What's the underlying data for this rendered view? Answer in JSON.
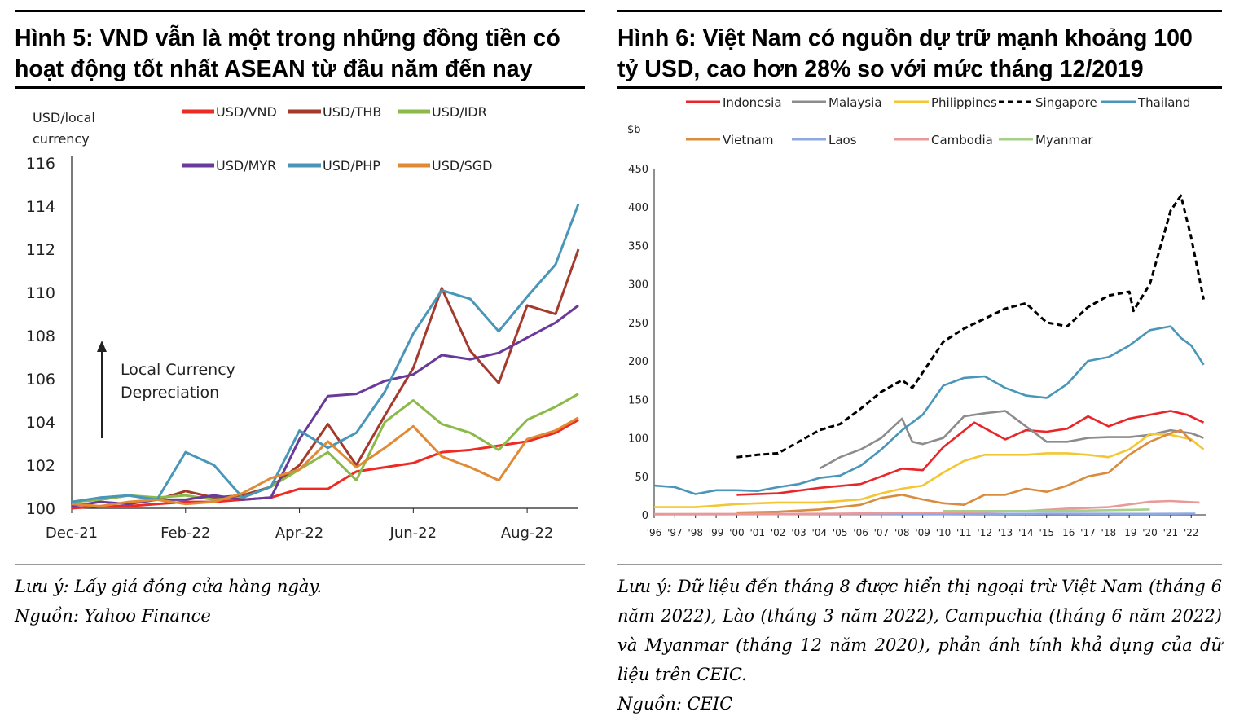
{
  "left": {
    "title_line1": "Hình 5: VND vẫn là một trong những đồng tiền có",
    "title_line2": "hoạt động tốt nhất ASEAN từ đầu năm đến nay",
    "note": "Lưu ý: Lấy giá đóng cửa hàng ngày.",
    "source": "Nguồn: Yahoo Finance"
  },
  "right": {
    "title_line1": "Hình 6: Việt Nam có nguồn dự trữ mạnh khoảng 100",
    "title_line2": "tỷ USD, cao hơn 28% so với mức tháng 12/2019",
    "note": "Lưu ý: Dữ liệu đến tháng 8 được hiển thị ngoại trừ Việt Nam (tháng 6 năm 2022), Lào (tháng 3 năm 2022), Campuchia (tháng 6 năm 2022) và Myanmar (tháng 12 năm 2020), phản ánh tính khả dụng của dữ liệu trên CEIC.",
    "source": "Nguồn: CEIC"
  },
  "chart_data": [
    {
      "type": "line",
      "ylabel_line1": "USD/local",
      "ylabel_line2": "currency",
      "annotation_line1": "Local Currency",
      "annotation_line2": "Depreciation",
      "ylim": [
        100,
        116
      ],
      "yticks": [
        100,
        102,
        104,
        106,
        108,
        110,
        112,
        114,
        116
      ],
      "xlim": [
        0,
        8.9
      ],
      "xtick_labels": [
        "Dec-21",
        "Feb-22",
        "Apr-22",
        "Jun-22",
        "Aug-22"
      ],
      "xtick_positions": [
        0,
        2,
        4,
        6,
        8
      ],
      "legend_position": "top",
      "x": [
        0,
        0.5,
        1.0,
        1.5,
        2.0,
        2.5,
        3.0,
        3.5,
        4.0,
        4.5,
        5.0,
        5.5,
        6.0,
        6.5,
        7.0,
        7.5,
        8.0,
        8.5,
        8.9
      ],
      "series": [
        {
          "name": "USD/VND",
          "color": "#ee2a24",
          "values": [
            100.0,
            100.1,
            100.1,
            100.2,
            100.3,
            100.3,
            100.4,
            100.5,
            100.9,
            100.9,
            101.7,
            101.9,
            102.1,
            102.6,
            102.7,
            102.9,
            103.1,
            103.5,
            104.1
          ]
        },
        {
          "name": "USD/THB",
          "color": "#a33a2c",
          "values": [
            100.3,
            100.4,
            100.6,
            100.4,
            100.8,
            100.5,
            100.6,
            101.0,
            102.0,
            103.9,
            102.0,
            104.3,
            106.5,
            110.2,
            107.3,
            105.8,
            109.4,
            109.0,
            112.0
          ]
        },
        {
          "name": "USD/IDR",
          "color": "#8bba4a",
          "values": [
            100.3,
            100.4,
            100.6,
            100.5,
            100.6,
            100.4,
            100.5,
            101.0,
            101.8,
            102.6,
            101.3,
            104.0,
            105.0,
            103.9,
            103.5,
            102.7,
            104.1,
            104.7,
            105.3
          ]
        },
        {
          "name": "USD/MYR",
          "color": "#6a3a9a",
          "values": [
            100.1,
            100.3,
            100.2,
            100.4,
            100.4,
            100.6,
            100.4,
            100.5,
            103.2,
            105.2,
            105.3,
            105.9,
            106.2,
            107.1,
            106.9,
            107.2,
            107.9,
            108.6,
            109.4
          ]
        },
        {
          "name": "USD/PHP",
          "color": "#4a96b8",
          "values": [
            100.3,
            100.5,
            100.6,
            100.4,
            102.6,
            102.0,
            100.5,
            101.0,
            103.6,
            102.8,
            103.5,
            105.4,
            108.1,
            110.1,
            109.7,
            108.2,
            109.8,
            111.3,
            114.1
          ]
        },
        {
          "name": "USD/SGD",
          "color": "#e08a35",
          "values": [
            100.2,
            100.1,
            100.3,
            100.4,
            100.2,
            100.3,
            100.7,
            101.4,
            101.8,
            103.1,
            101.9,
            102.8,
            103.8,
            102.4,
            101.9,
            101.3,
            103.2,
            103.6,
            104.2
          ]
        }
      ]
    },
    {
      "type": "line",
      "ylabel": "$b",
      "ylim": [
        0,
        450
      ],
      "yticks": [
        0,
        50,
        100,
        150,
        200,
        250,
        300,
        350,
        400,
        450
      ],
      "xlim": [
        1996,
        2022.7
      ],
      "xtick_labels": [
        "'96",
        "'97",
        "'98",
        "'99",
        "'00",
        "'01",
        "'02",
        "'03",
        "'04",
        "'05",
        "'06",
        "'07",
        "'08",
        "'09",
        "'10",
        "'11",
        "'12",
        "'13",
        "'14",
        "'15",
        "'16",
        "'17",
        "'18",
        "'19",
        "'20",
        "'21",
        "'22"
      ],
      "xtick_positions": [
        1996,
        1997,
        1998,
        1999,
        2000,
        2001,
        2002,
        2003,
        2004,
        2005,
        2006,
        2007,
        2008,
        2009,
        2010,
        2011,
        2012,
        2013,
        2014,
        2015,
        2016,
        2017,
        2018,
        2019,
        2020,
        2021,
        2022
      ],
      "legend_position": "top",
      "series": [
        {
          "name": "Indonesia",
          "color": "#e8262a",
          "dashed": false,
          "x": [
            2000,
            2002,
            2004,
            2006,
            2007,
            2008,
            2009,
            2010,
            2011.5,
            2013,
            2014,
            2015,
            2016,
            2017,
            2018,
            2019,
            2020,
            2021,
            2021.8,
            2022.6
          ],
          "y": [
            26,
            28,
            35,
            40,
            50,
            60,
            58,
            88,
            120,
            98,
            110,
            108,
            112,
            128,
            115,
            125,
            130,
            135,
            130,
            120
          ]
        },
        {
          "name": "Malaysia",
          "color": "#8c8c8c",
          "dashed": false,
          "x": [
            2004,
            2005,
            2006,
            2007,
            2008,
            2008.5,
            2009,
            2010,
            2011,
            2012,
            2013,
            2014,
            2015,
            2016,
            2017,
            2018,
            2019,
            2020,
            2021,
            2022,
            2022.6
          ],
          "y": [
            60,
            75,
            85,
            100,
            125,
            95,
            92,
            100,
            128,
            132,
            135,
            115,
            95,
            95,
            100,
            101,
            101,
            104,
            110,
            106,
            100
          ]
        },
        {
          "name": "Philippines",
          "color": "#f3c632",
          "dashed": false,
          "x": [
            1996,
            1998,
            2000,
            2002,
            2004,
            2006,
            2007,
            2008,
            2009,
            2010,
            2011,
            2012,
            2013,
            2014,
            2015,
            2016,
            2017,
            2018,
            2019,
            2020,
            2021,
            2022,
            2022.6
          ],
          "y": [
            10,
            10,
            14,
            16,
            16,
            20,
            28,
            34,
            38,
            55,
            70,
            78,
            78,
            78,
            80,
            80,
            78,
            75,
            85,
            105,
            104,
            98,
            85
          ]
        },
        {
          "name": "Singapore",
          "color": "#000000",
          "dashed": true,
          "x": [
            2000,
            2001,
            2002,
            2003,
            2004,
            2005,
            2006,
            2007,
            2008,
            2008.5,
            2009,
            2010,
            2011,
            2012,
            2013,
            2014,
            2015,
            2016,
            2017,
            2018,
            2019,
            2019.2,
            2020,
            2021,
            2021.5,
            2022,
            2022.6
          ],
          "y": [
            75,
            78,
            80,
            95,
            110,
            118,
            138,
            160,
            175,
            165,
            185,
            225,
            242,
            255,
            268,
            275,
            250,
            245,
            270,
            285,
            290,
            265,
            300,
            395,
            415,
            360,
            280
          ]
        },
        {
          "name": "Thailand",
          "color": "#4a96b8",
          "dashed": false,
          "x": [
            1996,
            1997,
            1998,
            1999,
            2000,
            2001,
            2002,
            2003,
            2004,
            2005,
            2006,
            2007,
            2008,
            2009,
            2010,
            2011,
            2012,
            2013,
            2014,
            2015,
            2016,
            2017,
            2018,
            2019,
            2020,
            2021,
            2021.5,
            2022,
            2022.6
          ],
          "y": [
            38,
            36,
            27,
            32,
            32,
            31,
            36,
            40,
            48,
            51,
            64,
            85,
            110,
            130,
            168,
            178,
            180,
            165,
            155,
            152,
            170,
            200,
            205,
            220,
            240,
            245,
            230,
            220,
            195
          ]
        },
        {
          "name": "Vietnam",
          "color": "#d98b3e",
          "dashed": false,
          "x": [
            2000,
            2002,
            2004,
            2006,
            2007,
            2008,
            2009,
            2010,
            2011,
            2012,
            2013,
            2014,
            2015,
            2016,
            2017,
            2018,
            2019,
            2020,
            2021,
            2021.5,
            2022
          ],
          "y": [
            3,
            4,
            7,
            13,
            22,
            26,
            20,
            15,
            13,
            26,
            26,
            34,
            30,
            38,
            50,
            55,
            78,
            95,
            106,
            110,
            96
          ]
        },
        {
          "name": "Laos",
          "color": "#8fa8e0",
          "dashed": false,
          "x": [
            1996,
            2005,
            2010,
            2015,
            2020,
            2022.2
          ],
          "y": [
            0.5,
            1,
            1,
            1.5,
            1.3,
            1.5
          ]
        },
        {
          "name": "Cambodia",
          "color": "#e89a9a",
          "dashed": false,
          "x": [
            1996,
            2005,
            2010,
            2014,
            2016,
            2018,
            2020,
            2021,
            2022.4
          ],
          "y": [
            1,
            1.5,
            3,
            5,
            8,
            10,
            17,
            18,
            16
          ]
        },
        {
          "name": "Myanmar",
          "color": "#a6cf8a",
          "dashed": false,
          "x": [
            2010,
            2015,
            2018,
            2020
          ],
          "y": [
            5,
            5,
            6,
            7
          ]
        }
      ]
    }
  ]
}
